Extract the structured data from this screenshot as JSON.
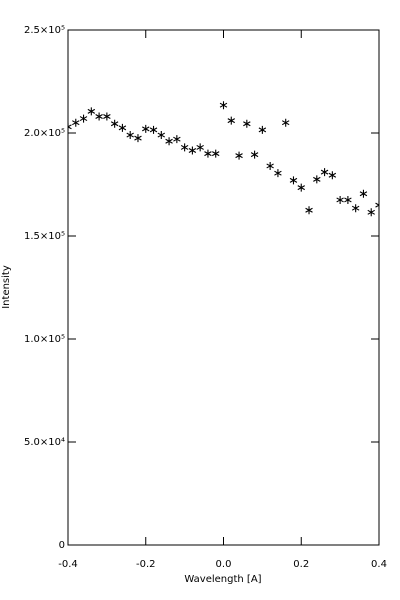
{
  "chart_data": {
    "type": "scatter",
    "x_label": "Wavelength [A]",
    "y_label": "Intensity",
    "xlim": [
      -0.4,
      0.4
    ],
    "ylim": [
      0,
      250000
    ],
    "xticks": [
      -0.4,
      -0.2,
      {
        "value": 0,
        "label": "0.0"
      },
      0.2,
      0.4
    ],
    "yticks": [
      0,
      {
        "value": 50000,
        "label": "5.0×10⁴"
      },
      {
        "value": 100000,
        "label": "1.0×10⁵"
      },
      {
        "value": 150000,
        "label": "1.5×10⁵"
      },
      {
        "value": 200000,
        "label": "2.0×10⁵"
      },
      {
        "value": 250000,
        "label": "2.5×10⁵"
      }
    ],
    "color": "#000000",
    "x": [
      -0.4,
      -0.38,
      -0.36,
      -0.34,
      -0.32,
      -0.3,
      -0.28,
      -0.26,
      -0.24,
      -0.22,
      -0.2,
      -0.18,
      -0.16,
      -0.14,
      -0.12,
      -0.1,
      -0.08,
      -0.06,
      -0.04,
      -0.02,
      0,
      0.02,
      0.04,
      0.06,
      0.08,
      0.1,
      0.12,
      0.14,
      0.16,
      0.18,
      0.2,
      0.22,
      0.24,
      0.26,
      0.28,
      0.3,
      0.32,
      0.34,
      0.36,
      0.38,
      0.4
    ],
    "values": [
      203000,
      205000,
      207000,
      210500,
      208000,
      208000,
      204500,
      202500,
      199000,
      197500,
      202000,
      201500,
      199000,
      196000,
      197000,
      193000,
      191500,
      193000,
      190000,
      190000,
      213500,
      206000,
      189000,
      204500,
      189500,
      201500,
      184000,
      180500,
      205000,
      177000,
      173500,
      162500,
      177500,
      181000,
      179500,
      167500,
      167500,
      163500,
      170500,
      161500,
      165000
    ]
  }
}
